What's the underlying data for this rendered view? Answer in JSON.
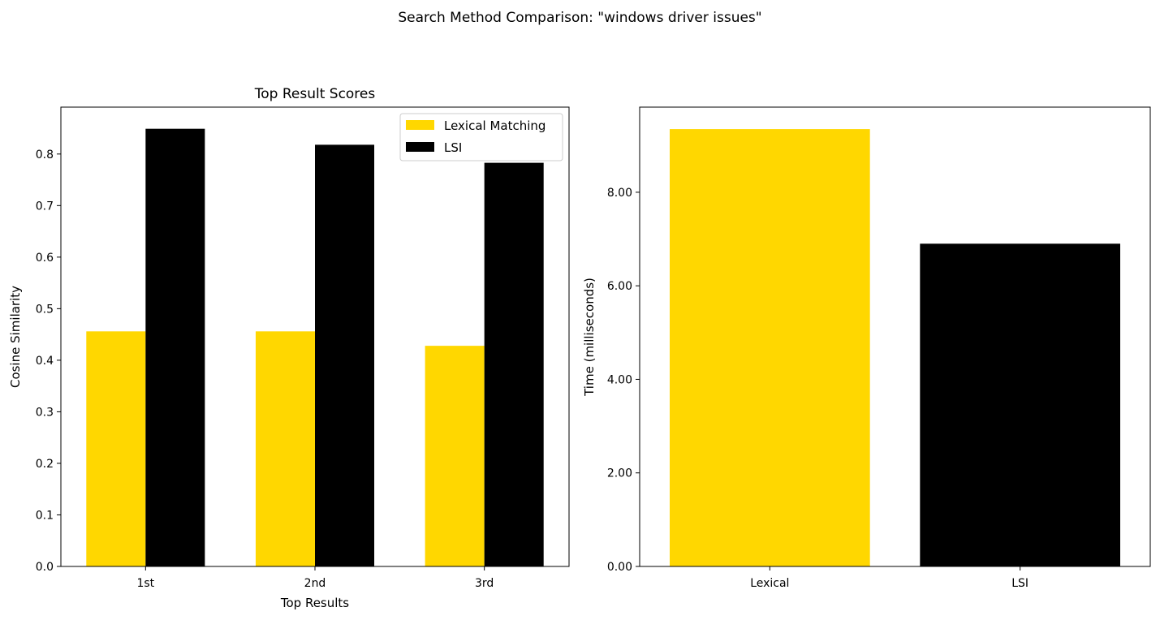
{
  "figure": {
    "suptitle": "Search Method Comparison: \"windows driver issues\""
  },
  "colors": {
    "lexical": "#FFD700",
    "lsi": "#000000"
  },
  "chart_data": [
    {
      "type": "bar",
      "title": "Top Result Scores",
      "xlabel": "Top Results",
      "ylabel": "Cosine Similarity",
      "categories": [
        "1st",
        "2nd",
        "3rd"
      ],
      "series": [
        {
          "name": "Lexical Matching",
          "color": "#FFD700",
          "values": [
            0.456,
            0.456,
            0.428
          ]
        },
        {
          "name": "LSI",
          "color": "#000000",
          "values": [
            0.849,
            0.818,
            0.783
          ]
        }
      ],
      "ylim": [
        0,
        0.891
      ],
      "yticks": [
        0.0,
        0.1,
        0.2,
        0.3,
        0.4,
        0.5,
        0.6,
        0.7,
        0.8
      ],
      "ytick_labels": [
        "0.0",
        "0.1",
        "0.2",
        "0.3",
        "0.4",
        "0.5",
        "0.6",
        "0.7",
        "0.8"
      ],
      "legend": "top-right",
      "grid": false
    },
    {
      "type": "bar",
      "title": "",
      "xlabel": "",
      "ylabel": "Time (milliseconds)",
      "categories": [
        "Lexical",
        "LSI"
      ],
      "colors": [
        "#FFD700",
        "#000000"
      ],
      "values": [
        9.35,
        6.9
      ],
      "ylim": [
        0,
        9.82
      ],
      "yticks": [
        0,
        2,
        4,
        6,
        8
      ],
      "ytick_labels": [
        "0.00",
        "2.00",
        "4.00",
        "6.00",
        "8.00"
      ],
      "grid": false
    }
  ]
}
